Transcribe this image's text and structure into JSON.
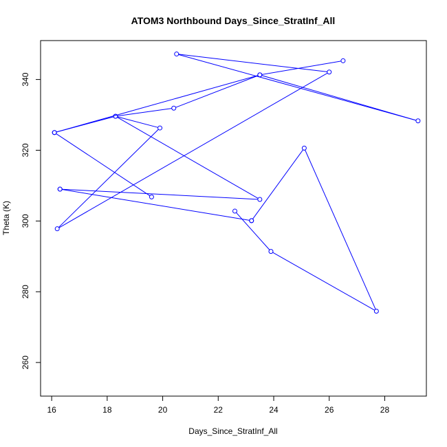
{
  "chart_data": {
    "type": "line",
    "title": "ATOM3 Northbound Days_Since_StratInf_All",
    "xlabel": "Days_Since_StratInf_All",
    "ylabel": "Theta (K)",
    "xlim": [
      15.6,
      29.5
    ],
    "ylim": [
      250.5,
      351
    ],
    "xticks": [
      16,
      18,
      20,
      22,
      24,
      26,
      28
    ],
    "yticks": [
      260,
      280,
      300,
      320,
      340
    ],
    "series_color": "#0000ff",
    "marker": "open-circle",
    "grid": false,
    "legend": "none",
    "series": [
      {
        "x": [
          23.2,
          25.1,
          27.7,
          23.9,
          22.6
        ],
        "y": [
          300.1,
          320.6,
          274.5,
          291.4,
          302.8
        ]
      },
      {
        "x": [
          16.3,
          23.5,
          18.3,
          19.9,
          16.2,
          26.0,
          20.5,
          29.2,
          23.5,
          16.1,
          19.6
        ],
        "y": [
          309.0,
          306.1,
          329.6,
          326.3,
          297.8,
          342.1,
          347.2,
          328.3,
          341.3,
          325.0,
          306.8
        ]
      },
      {
        "x": [
          16.1,
          18.3,
          20.4,
          23.5,
          26.5
        ],
        "y": [
          325.0,
          329.6,
          331.9,
          341.3,
          345.3
        ]
      },
      {
        "x": [
          16.3,
          23.2
        ],
        "y": [
          309.0,
          300.1
        ]
      }
    ]
  }
}
